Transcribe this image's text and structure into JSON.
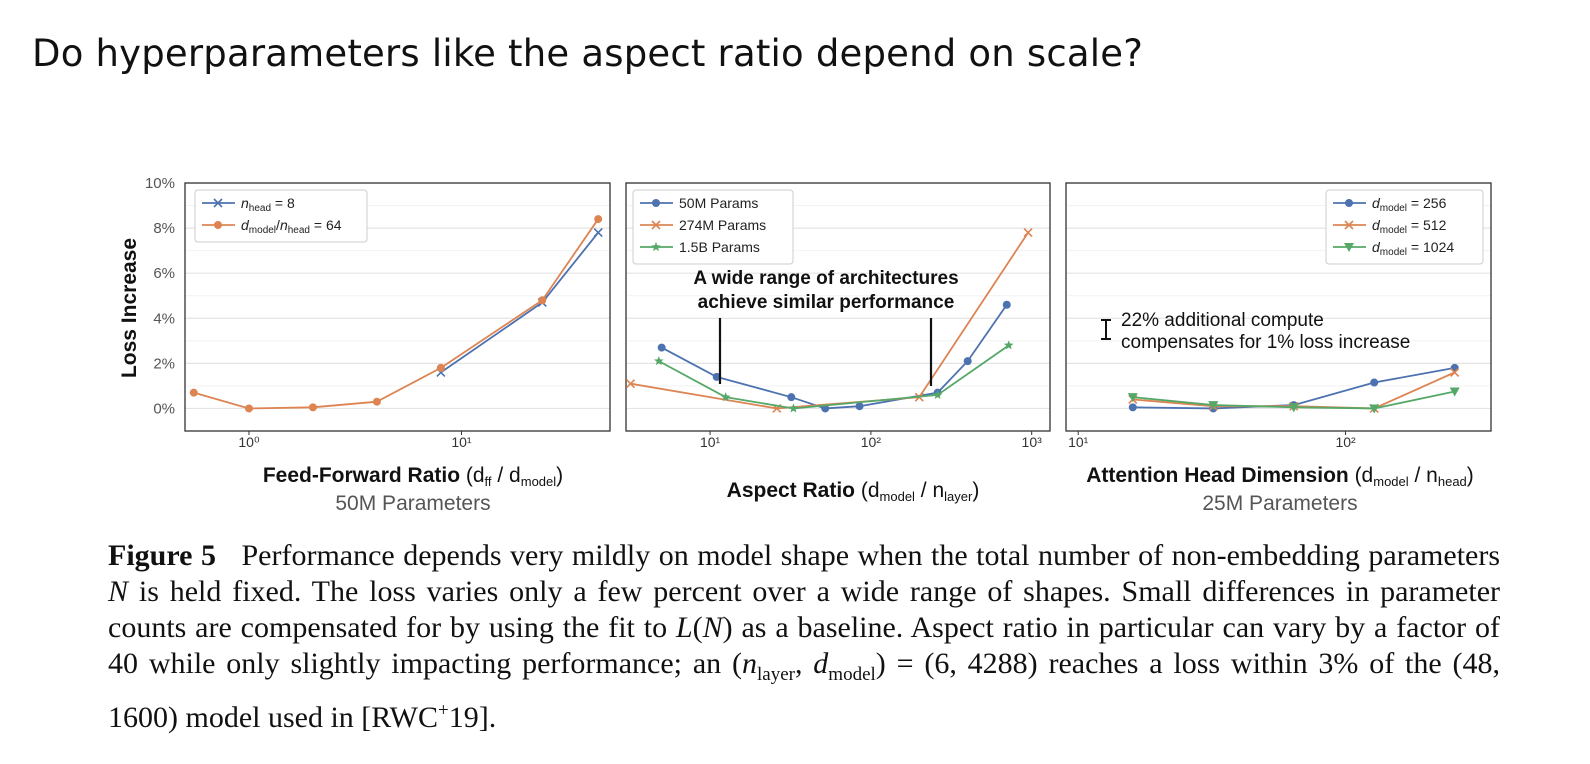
{
  "slide_title": "Do hyperparameters like the aspect ratio depend on scale?",
  "shared_ylabel": "Loss Increase",
  "y_ticks": [
    "0%",
    "2%",
    "4%",
    "6%",
    "8%",
    "10%"
  ],
  "colors": {
    "blue": "#4c72b0",
    "orange": "#dd8452",
    "green": "#55a868"
  },
  "chart_data": [
    {
      "type": "line",
      "xscale": "log",
      "xlim": [
        0.5,
        50
      ],
      "ylim": [
        -0.01,
        0.1
      ],
      "xlabel": "Feed-Forward Ratio (dff / dmodel)",
      "subtitle": "50M Parameters",
      "x_ticks": [
        "10⁰",
        "10¹"
      ],
      "legend_position": "top-left",
      "series": [
        {
          "name": "nhead = 8",
          "color": "blue",
          "marker": "x",
          "x": [
            8,
            24,
            44
          ],
          "y": [
            0.016,
            0.047,
            0.078
          ]
        },
        {
          "name": "dmodel/nhead = 64",
          "color": "orange",
          "marker": "o",
          "x": [
            0.55,
            1,
            2,
            4,
            8,
            24,
            44
          ],
          "y": [
            0.007,
            0.0,
            0.0005,
            0.003,
            0.018,
            0.048,
            0.084
          ]
        }
      ]
    },
    {
      "type": "line",
      "xscale": "log",
      "xlim": [
        3,
        1300
      ],
      "ylim": [
        -0.01,
        0.1
      ],
      "xlabel": "Aspect Ratio (dmodel / nlayer)",
      "subtitle": "",
      "x_ticks": [
        "10¹",
        "10²",
        "10³"
      ],
      "legend_position": "top-left",
      "annotation": "A wide range of architectures achieve similar performance",
      "series": [
        {
          "name": "50M Params",
          "color": "blue",
          "marker": "o",
          "x": [
            5,
            11,
            32,
            52,
            85,
            260,
            400,
            700
          ],
          "y": [
            0.027,
            0.014,
            0.005,
            0.0,
            0.001,
            0.007,
            0.021,
            0.046
          ]
        },
        {
          "name": "274M Params",
          "color": "orange",
          "marker": "x",
          "x": [
            3.2,
            26,
            200,
            950
          ],
          "y": [
            0.011,
            0.0,
            0.005,
            0.078
          ]
        },
        {
          "name": "1.5B Params",
          "color": "green",
          "marker": "*",
          "x": [
            4.8,
            12.5,
            33,
            260,
            720
          ],
          "y": [
            0.021,
            0.005,
            0.0,
            0.006,
            0.028
          ]
        }
      ]
    },
    {
      "type": "line",
      "xscale": "log",
      "xlim": [
        9,
        350
      ],
      "ylim": [
        -0.01,
        0.1
      ],
      "xlabel": "Attention Head Dimension (dmodel / nhead)",
      "subtitle": "25M Parameters",
      "x_ticks": [
        "10¹",
        "10²"
      ],
      "legend_position": "top-right",
      "annotation": "22% additional compute compensates for 1% loss increase",
      "series": [
        {
          "name": "dmodel = 256",
          "color": "blue",
          "marker": "o",
          "x": [
            16,
            32,
            64,
            128,
            256
          ],
          "y": [
            0.0005,
            0.0,
            0.0015,
            0.0115,
            0.018
          ]
        },
        {
          "name": "dmodel = 512",
          "color": "orange",
          "marker": "x",
          "x": [
            16,
            32,
            64,
            128,
            256
          ],
          "y": [
            0.004,
            0.001,
            0.001,
            0.0,
            0.016
          ]
        },
        {
          "name": "dmodel = 1024",
          "color": "green",
          "marker": "v",
          "x": [
            16,
            32,
            64,
            128,
            256
          ],
          "y": [
            0.005,
            0.0015,
            0.0005,
            0.0,
            0.0075
          ]
        }
      ]
    }
  ],
  "caption": {
    "label": "Figure 5",
    "text": "Performance depends very mildly on model shape when the total number of non-embedding parameters N is held fixed. The loss varies only a few percent over a wide range of shapes. Small differences in parameter counts are compensated for by using the fit to L(N) as a baseline. Aspect ratio in particular can vary by a factor of 40 while only slightly impacting performance; an (nlayer, dmodel) = (6, 4288) reaches a loss within 3% of the (48, 1600) model used in [RWC+19]."
  }
}
